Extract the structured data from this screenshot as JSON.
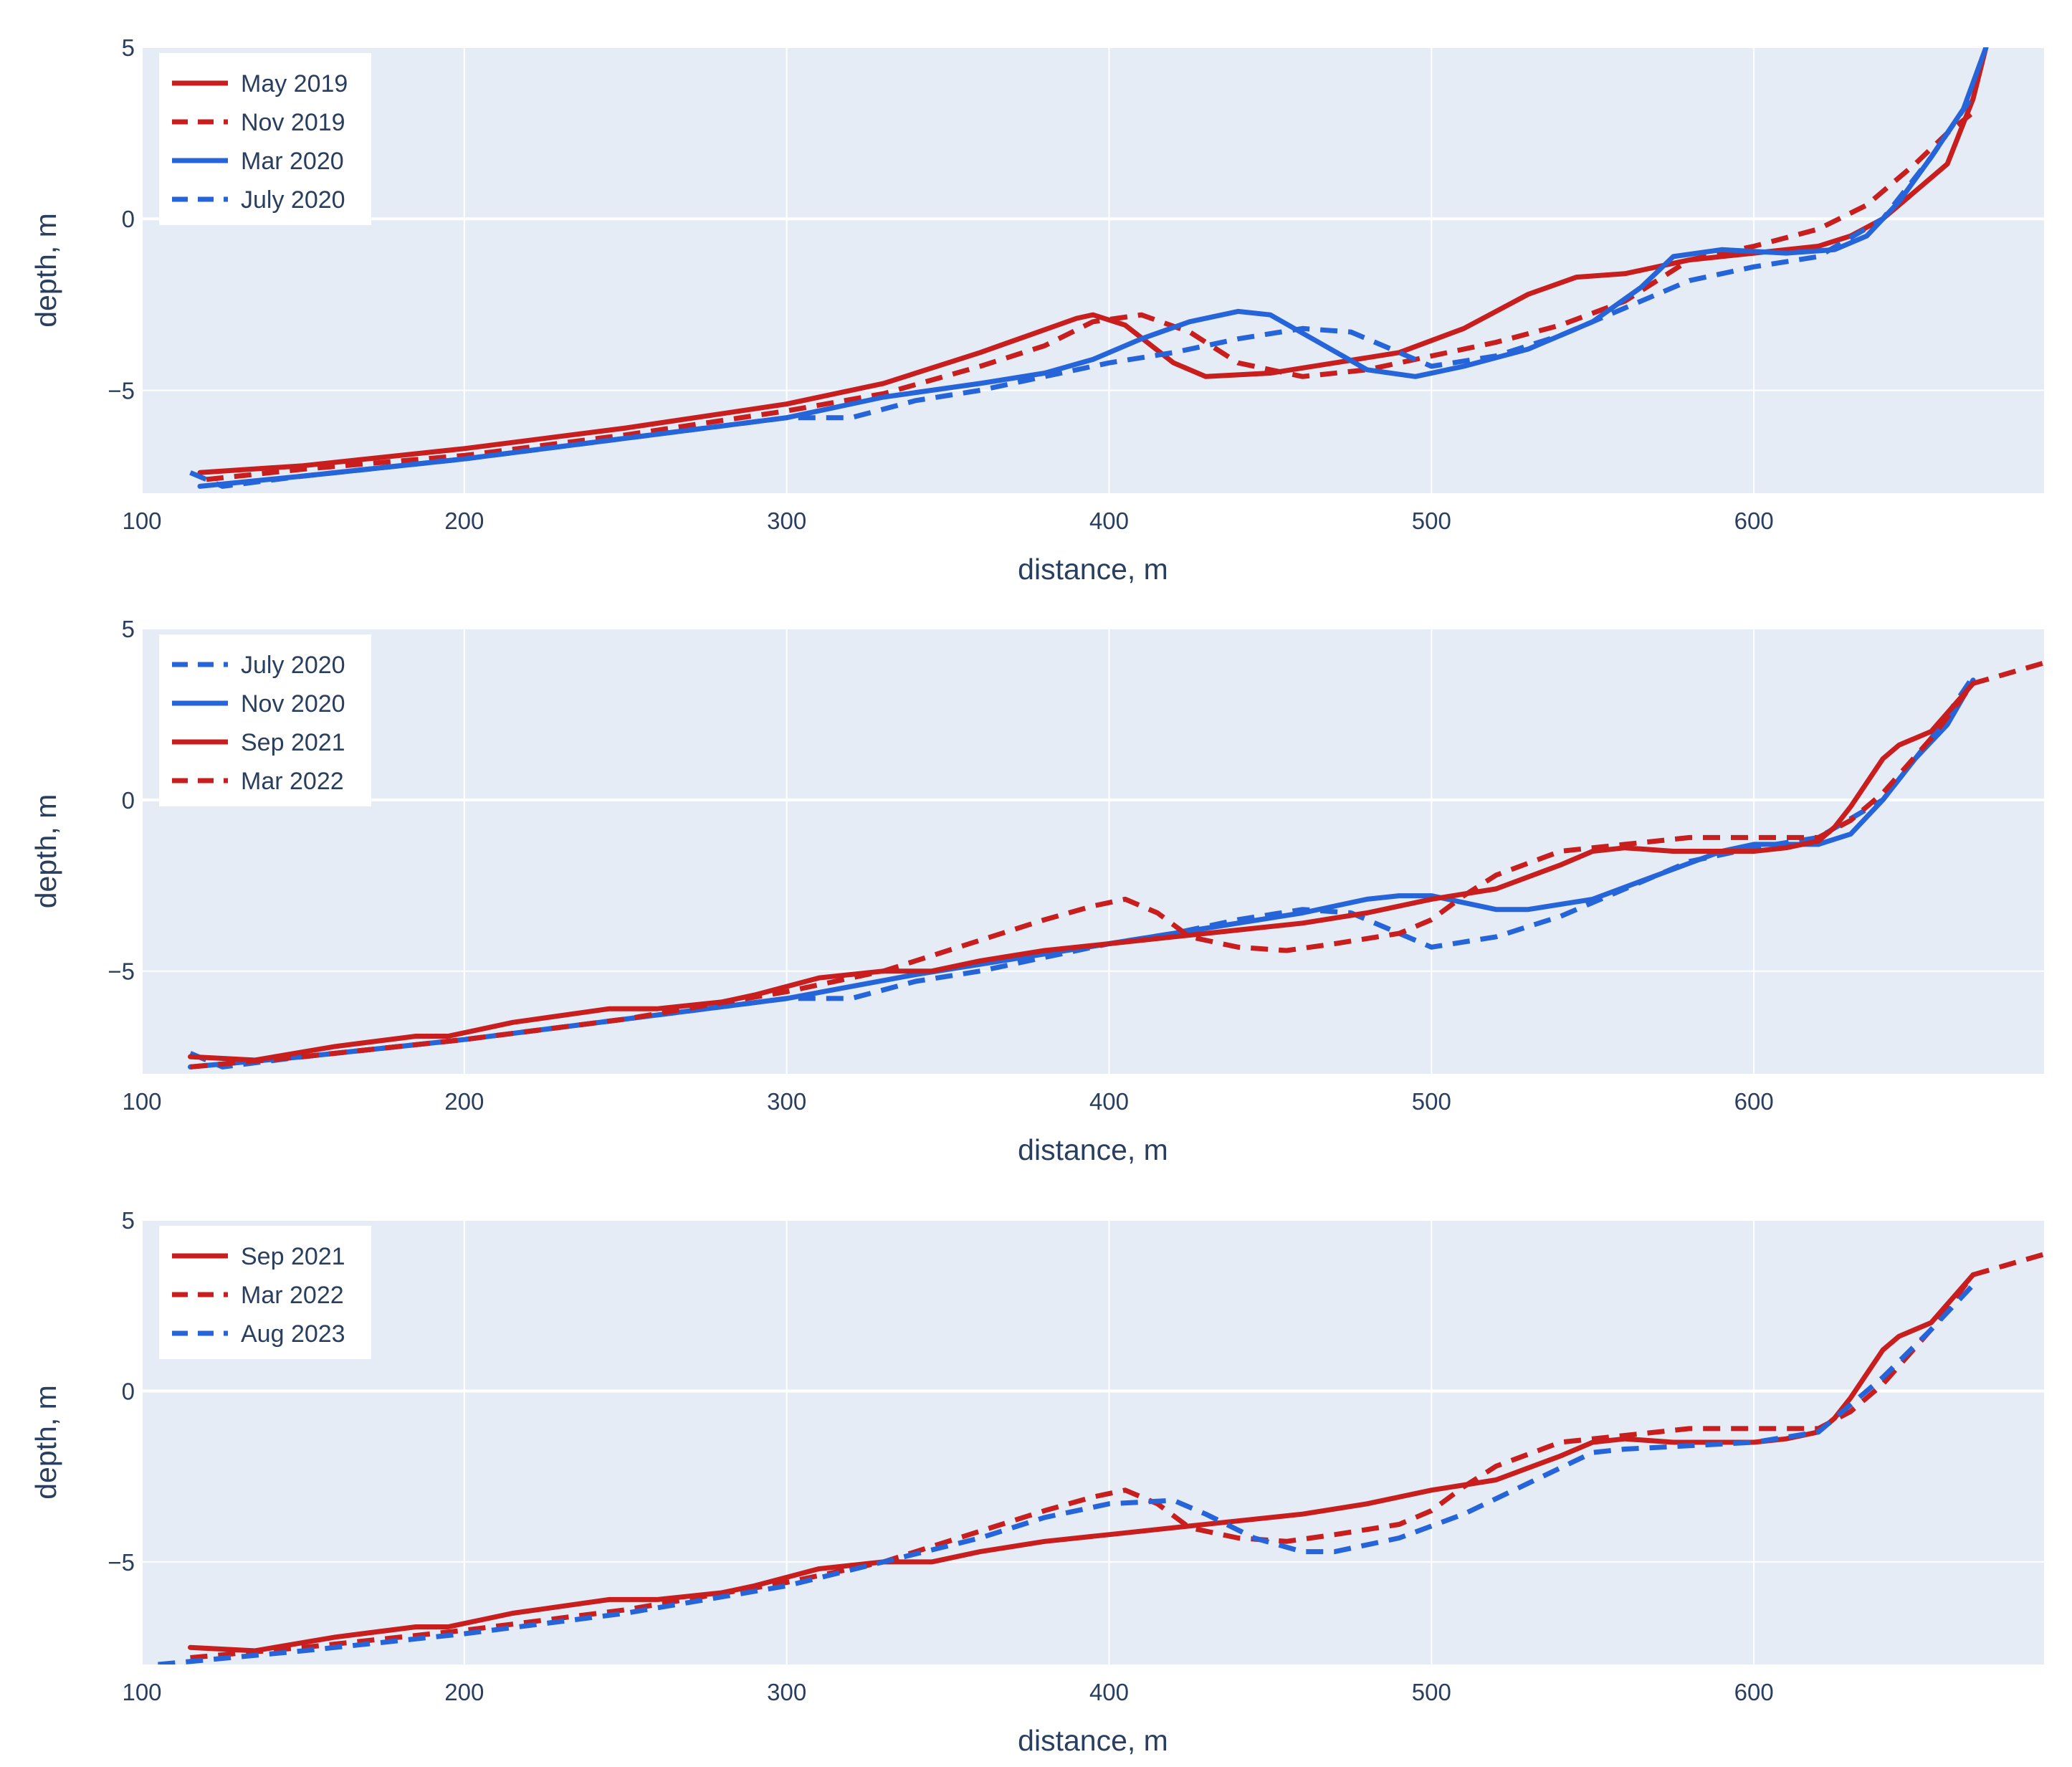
{
  "colors": {
    "red": "#c81e1e",
    "blue": "#2565d9",
    "plot_bg": "#e5ecf6",
    "grid": "#ffffff",
    "text": "#2a3f5f"
  },
  "chart_data": [
    {
      "type": "line",
      "xlabel": "distance, m",
      "ylabel": "depth, m",
      "xlim": [
        100,
        690
      ],
      "ylim": [
        -8,
        5
      ],
      "xticks": [
        100,
        200,
        300,
        400,
        500,
        600
      ],
      "xtick_labels": [
        "100",
        "200",
        "300",
        "400",
        "500",
        "600"
      ],
      "yticks": [
        5,
        0,
        -5
      ],
      "ytick_labels": [
        "5",
        "0",
        "−5"
      ],
      "legend_position": "top-left",
      "series": [
        {
          "name": "May 2019",
          "color": "#c81e1e",
          "dash": "solid",
          "x": [
            118,
            150,
            200,
            250,
            300,
            330,
            360,
            375,
            390,
            395,
            405,
            420,
            430,
            450,
            470,
            490,
            510,
            530,
            545,
            560,
            580,
            600,
            620,
            630,
            640,
            650,
            660,
            668,
            672
          ],
          "y": [
            -7.4,
            -7.2,
            -6.7,
            -6.1,
            -5.4,
            -4.8,
            -3.9,
            -3.4,
            -2.9,
            -2.8,
            -3.1,
            -4.2,
            -4.6,
            -4.5,
            -4.2,
            -3.9,
            -3.2,
            -2.2,
            -1.7,
            -1.6,
            -1.2,
            -1.0,
            -0.8,
            -0.5,
            0.0,
            0.8,
            1.6,
            3.5,
            5.0
          ]
        },
        {
          "name": "Nov 2019",
          "color": "#c81e1e",
          "dash": "dash",
          "x": [
            120,
            150,
            200,
            250,
            300,
            330,
            360,
            380,
            395,
            410,
            425,
            440,
            460,
            480,
            500,
            520,
            540,
            560,
            580,
            600,
            620,
            635,
            650,
            660,
            668
          ],
          "y": [
            -7.6,
            -7.3,
            -6.9,
            -6.3,
            -5.6,
            -5.1,
            -4.3,
            -3.7,
            -3.0,
            -2.8,
            -3.3,
            -4.2,
            -4.6,
            -4.4,
            -4.0,
            -3.6,
            -3.1,
            -2.4,
            -1.2,
            -0.8,
            -0.3,
            0.4,
            1.6,
            2.5,
            3.1
          ]
        },
        {
          "name": "Mar 2020",
          "color": "#2565d9",
          "dash": "solid",
          "x": [
            118,
            150,
            200,
            250,
            300,
            330,
            360,
            380,
            395,
            410,
            425,
            440,
            450,
            465,
            480,
            495,
            510,
            530,
            550,
            565,
            575,
            590,
            610,
            625,
            635,
            645,
            655,
            665,
            672
          ],
          "y": [
            -7.8,
            -7.5,
            -7.0,
            -6.4,
            -5.8,
            -5.2,
            -4.8,
            -4.5,
            -4.1,
            -3.5,
            -3.0,
            -2.7,
            -2.8,
            -3.6,
            -4.4,
            -4.6,
            -4.3,
            -3.8,
            -3.0,
            -2.0,
            -1.1,
            -0.9,
            -1.0,
            -0.9,
            -0.5,
            0.5,
            1.8,
            3.2,
            5.0
          ]
        },
        {
          "name": "July 2020",
          "color": "#2565d9",
          "dash": "dash",
          "x": [
            115,
            125,
            150,
            200,
            250,
            300,
            320,
            340,
            360,
            380,
            400,
            420,
            440,
            460,
            475,
            490,
            500,
            520,
            540,
            560,
            580,
            600,
            620,
            640,
            655,
            668
          ],
          "y": [
            -7.4,
            -7.8,
            -7.5,
            -7.0,
            -6.4,
            -5.8,
            -5.8,
            -5.3,
            -5.0,
            -4.6,
            -4.2,
            -3.9,
            -3.5,
            -3.2,
            -3.3,
            -3.9,
            -4.3,
            -4.0,
            -3.4,
            -2.6,
            -1.8,
            -1.4,
            -1.1,
            0.0,
            1.8,
            3.6
          ]
        }
      ]
    },
    {
      "type": "line",
      "xlabel": "distance, m",
      "ylabel": "depth, m",
      "xlim": [
        100,
        690
      ],
      "ylim": [
        -8,
        5
      ],
      "xticks": [
        100,
        200,
        300,
        400,
        500,
        600
      ],
      "xtick_labels": [
        "100",
        "200",
        "300",
        "400",
        "500",
        "600"
      ],
      "yticks": [
        5,
        0,
        -5
      ],
      "ytick_labels": [
        "5",
        "0",
        "−5"
      ],
      "legend_position": "top-left",
      "series": [
        {
          "name": "July 2020",
          "color": "#2565d9",
          "dash": "dash",
          "x": [
            115,
            125,
            150,
            200,
            250,
            300,
            320,
            340,
            360,
            380,
            400,
            420,
            440,
            460,
            475,
            490,
            500,
            520,
            540,
            560,
            580,
            600,
            620,
            640,
            655,
            668
          ],
          "y": [
            -7.4,
            -7.8,
            -7.5,
            -7.0,
            -6.4,
            -5.8,
            -5.8,
            -5.3,
            -5.0,
            -4.6,
            -4.2,
            -3.9,
            -3.5,
            -3.2,
            -3.3,
            -3.9,
            -4.3,
            -4.0,
            -3.4,
            -2.6,
            -1.8,
            -1.4,
            -1.1,
            0.0,
            1.8,
            3.6
          ]
        },
        {
          "name": "Nov 2020",
          "color": "#2565d9",
          "dash": "solid",
          "x": [
            115,
            150,
            200,
            250,
            300,
            340,
            380,
            420,
            460,
            480,
            490,
            500,
            510,
            520,
            530,
            550,
            570,
            590,
            600,
            610,
            620,
            630,
            640,
            650,
            660,
            668
          ],
          "y": [
            -7.8,
            -7.5,
            -7.0,
            -6.4,
            -5.8,
            -5.1,
            -4.5,
            -3.9,
            -3.3,
            -2.9,
            -2.8,
            -2.8,
            -3.0,
            -3.2,
            -3.2,
            -2.9,
            -2.2,
            -1.5,
            -1.3,
            -1.3,
            -1.3,
            -1.0,
            0.0,
            1.2,
            2.2,
            3.5
          ]
        },
        {
          "name": "Sep 2021",
          "color": "#c81e1e",
          "dash": "solid",
          "x": [
            115,
            135,
            160,
            185,
            195,
            215,
            245,
            260,
            280,
            290,
            310,
            330,
            345,
            360,
            380,
            400,
            420,
            440,
            460,
            480,
            500,
            520,
            540,
            550,
            560,
            575,
            600,
            610,
            620,
            625,
            630,
            635,
            640,
            645,
            655,
            668
          ],
          "y": [
            -7.5,
            -7.6,
            -7.2,
            -6.9,
            -6.9,
            -6.5,
            -6.1,
            -6.1,
            -5.9,
            -5.7,
            -5.2,
            -5.0,
            -5.0,
            -4.7,
            -4.4,
            -4.2,
            -4.0,
            -3.8,
            -3.6,
            -3.3,
            -2.9,
            -2.6,
            -1.9,
            -1.5,
            -1.4,
            -1.5,
            -1.5,
            -1.4,
            -1.2,
            -0.8,
            -0.2,
            0.5,
            1.2,
            1.6,
            2.0,
            3.4
          ]
        },
        {
          "name": "Mar 2022",
          "color": "#c81e1e",
          "dash": "dash",
          "x": [
            115,
            150,
            200,
            250,
            300,
            330,
            360,
            380,
            395,
            405,
            415,
            425,
            440,
            455,
            470,
            490,
            500,
            510,
            520,
            540,
            560,
            580,
            600,
            620,
            630,
            640,
            655,
            668,
            690
          ],
          "y": [
            -7.8,
            -7.5,
            -7.0,
            -6.4,
            -5.6,
            -5.0,
            -4.1,
            -3.5,
            -3.1,
            -2.9,
            -3.3,
            -4.0,
            -4.3,
            -4.4,
            -4.2,
            -3.9,
            -3.5,
            -2.8,
            -2.2,
            -1.5,
            -1.3,
            -1.1,
            -1.1,
            -1.1,
            -0.6,
            0.2,
            1.8,
            3.4,
            4.0
          ]
        }
      ]
    },
    {
      "type": "line",
      "xlabel": "distance, m",
      "ylabel": "depth, m",
      "xlim": [
        100,
        690
      ],
      "ylim": [
        -8,
        5
      ],
      "xticks": [
        100,
        200,
        300,
        400,
        500,
        600
      ],
      "xtick_labels": [
        "100",
        "200",
        "300",
        "400",
        "500",
        "600"
      ],
      "yticks": [
        5,
        0,
        -5
      ],
      "ytick_labels": [
        "5",
        "0",
        "−5"
      ],
      "legend_position": "top-left",
      "series": [
        {
          "name": "Sep 2021",
          "color": "#c81e1e",
          "dash": "solid",
          "x": [
            115,
            135,
            160,
            185,
            195,
            215,
            245,
            260,
            280,
            290,
            310,
            330,
            345,
            360,
            380,
            400,
            420,
            440,
            460,
            480,
            500,
            520,
            540,
            550,
            560,
            575,
            600,
            610,
            620,
            625,
            630,
            635,
            640,
            645,
            655,
            668
          ],
          "y": [
            -7.5,
            -7.6,
            -7.2,
            -6.9,
            -6.9,
            -6.5,
            -6.1,
            -6.1,
            -5.9,
            -5.7,
            -5.2,
            -5.0,
            -5.0,
            -4.7,
            -4.4,
            -4.2,
            -4.0,
            -3.8,
            -3.6,
            -3.3,
            -2.9,
            -2.6,
            -1.9,
            -1.5,
            -1.4,
            -1.5,
            -1.5,
            -1.4,
            -1.2,
            -0.8,
            -0.2,
            0.5,
            1.2,
            1.6,
            2.0,
            3.4
          ]
        },
        {
          "name": "Mar 2022",
          "color": "#c81e1e",
          "dash": "dash",
          "x": [
            115,
            150,
            200,
            250,
            300,
            330,
            360,
            380,
            395,
            405,
            415,
            425,
            440,
            455,
            470,
            490,
            500,
            510,
            520,
            540,
            560,
            580,
            600,
            620,
            630,
            640,
            655,
            668,
            690
          ],
          "y": [
            -7.8,
            -7.5,
            -7.0,
            -6.4,
            -5.6,
            -5.0,
            -4.1,
            -3.5,
            -3.1,
            -2.9,
            -3.3,
            -4.0,
            -4.3,
            -4.4,
            -4.2,
            -3.9,
            -3.5,
            -2.8,
            -2.2,
            -1.5,
            -1.3,
            -1.1,
            -1.1,
            -1.1,
            -0.6,
            0.2,
            1.8,
            3.4,
            4.0
          ]
        },
        {
          "name": "Aug 2023",
          "color": "#2565d9",
          "dash": "dash",
          "x": [
            105,
            150,
            200,
            250,
            300,
            330,
            360,
            380,
            400,
            420,
            430,
            445,
            460,
            470,
            490,
            510,
            530,
            550,
            560,
            580,
            600,
            620,
            640,
            655,
            668
          ],
          "y": [
            -8.0,
            -7.6,
            -7.1,
            -6.5,
            -5.7,
            -5.0,
            -4.3,
            -3.7,
            -3.3,
            -3.2,
            -3.6,
            -4.3,
            -4.7,
            -4.7,
            -4.3,
            -3.6,
            -2.7,
            -1.8,
            -1.7,
            -1.6,
            -1.5,
            -1.2,
            0.4,
            1.8,
            3.1
          ]
        }
      ]
    }
  ]
}
